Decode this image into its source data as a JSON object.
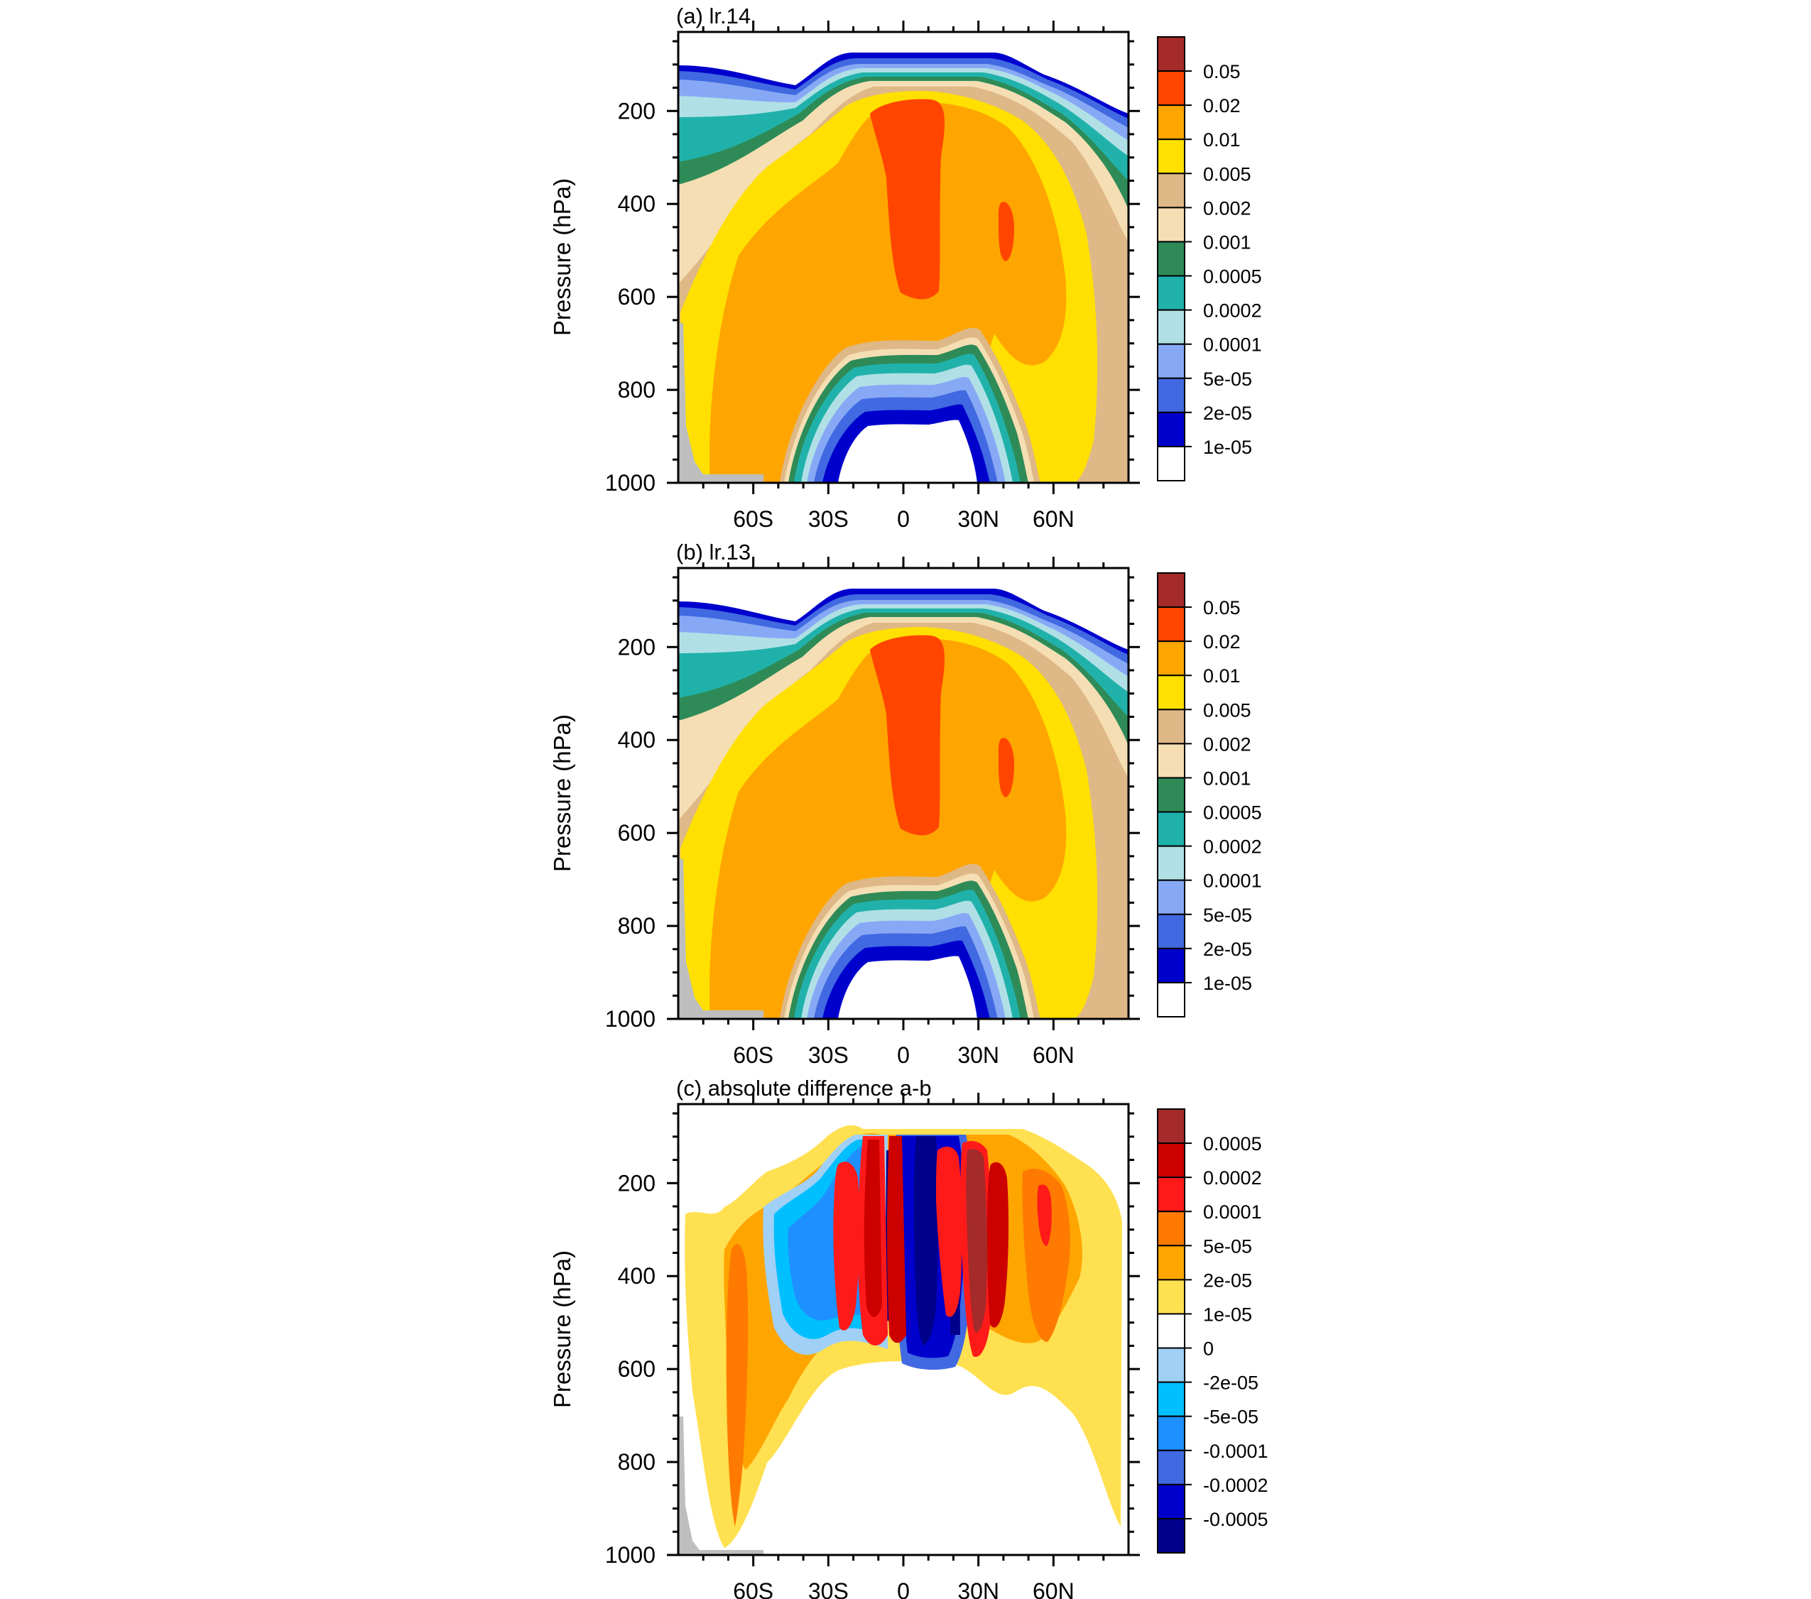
{
  "chart_data": [
    {
      "type": "heatmap",
      "title": "(a) lr.14",
      "ylabel": "Pressure (hPa)",
      "xlabel": "",
      "y_ticks": [
        "200",
        "400",
        "600",
        "800",
        "1000"
      ],
      "x_ticks": [
        "60S",
        "30S",
        "0",
        "30N",
        "60N"
      ],
      "ylim": [
        1000,
        30
      ],
      "xlim": [
        -90,
        90
      ],
      "colorbar": {
        "labels": [
          "0.05",
          "0.02",
          "0.01",
          "0.005",
          "0.002",
          "0.001",
          "0.0005",
          "0.0002",
          "0.0001",
          "5e-05",
          "2e-05",
          "1e-05"
        ],
        "colors": [
          "#a52a2a",
          "#ff4500",
          "#ffa500",
          "#ffe000",
          "#deb887",
          "#f5deb3",
          "#2e8b57",
          "#20b2aa",
          "#b0e0e6",
          "#87a9f5",
          "#4169e1",
          "#0000cd",
          "#ffffff"
        ]
      }
    },
    {
      "type": "heatmap",
      "title": "(b) lr.13",
      "ylabel": "Pressure (hPa)",
      "xlabel": "",
      "y_ticks": [
        "200",
        "400",
        "600",
        "800",
        "1000"
      ],
      "x_ticks": [
        "60S",
        "30S",
        "0",
        "30N",
        "60N"
      ],
      "ylim": [
        1000,
        30
      ],
      "xlim": [
        -90,
        90
      ],
      "colorbar": {
        "labels": [
          "0.05",
          "0.02",
          "0.01",
          "0.005",
          "0.002",
          "0.001",
          "0.0005",
          "0.0002",
          "0.0001",
          "5e-05",
          "2e-05",
          "1e-05"
        ],
        "colors": [
          "#a52a2a",
          "#ff4500",
          "#ffa500",
          "#ffe000",
          "#deb887",
          "#f5deb3",
          "#2e8b57",
          "#20b2aa",
          "#b0e0e6",
          "#87a9f5",
          "#4169e1",
          "#0000cd",
          "#ffffff"
        ]
      }
    },
    {
      "type": "heatmap",
      "title": "(c) absolute difference a-b",
      "ylabel": "Pressure (hPa)",
      "xlabel": "",
      "y_ticks": [
        "200",
        "400",
        "600",
        "800",
        "1000"
      ],
      "x_ticks": [
        "60S",
        "30S",
        "0",
        "30N",
        "60N"
      ],
      "ylim": [
        1000,
        30
      ],
      "xlim": [
        -90,
        90
      ],
      "colorbar": {
        "labels": [
          "0.0005",
          "0.0002",
          "0.0001",
          "5e-05",
          "2e-05",
          "1e-05",
          "0",
          "-2e-05",
          "-5e-05",
          "-0.0001",
          "-0.0002",
          "-0.0005"
        ],
        "colors": [
          "#a52a2a",
          "#cd0000",
          "#ff1a1a",
          "#ff7a00",
          "#ffa500",
          "#ffe050",
          "#ffffff",
          "#a0d0f5",
          "#00bfff",
          "#1e90ff",
          "#4169e1",
          "#0000cd",
          "#00008b"
        ]
      }
    }
  ]
}
